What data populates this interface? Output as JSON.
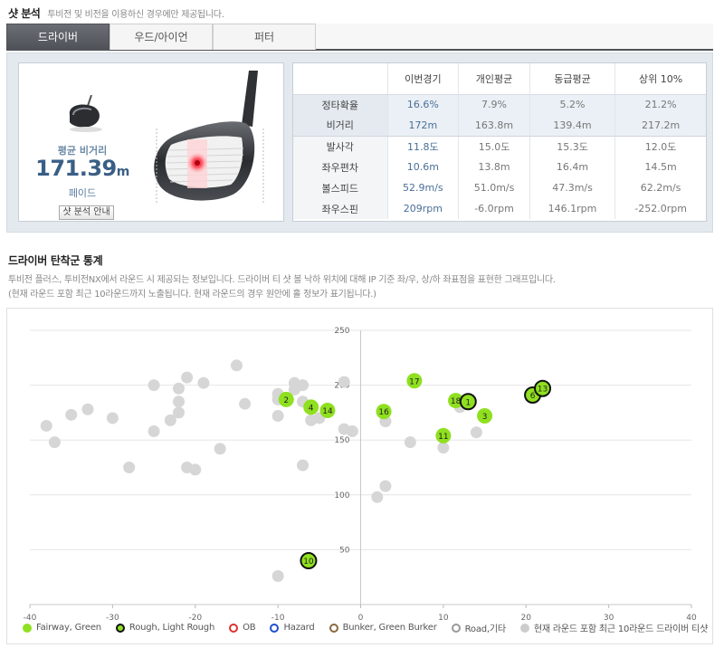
{
  "header": {
    "title": "샷 분석",
    "desc": "투비전 및 비전을 이용하신 경우에만 제공됩니다."
  },
  "tabs": [
    {
      "label": "드라이버",
      "active": true
    },
    {
      "label": "우드/아이언",
      "active": false
    },
    {
      "label": "퍼터",
      "active": false
    }
  ],
  "summary": {
    "avg_label": "평균 비거리",
    "avg_value": "171.39",
    "avg_unit": "m",
    "shot_type": "페이드",
    "button_label": "샷 분석 안내"
  },
  "stats": {
    "headers": [
      "",
      "이번경기",
      "개인평균",
      "동급평균",
      "상위 10%"
    ],
    "rows": [
      {
        "label": "정타확율",
        "cur": "16.6%",
        "personal": "7.9%",
        "peer": "5.2%",
        "top": "21.2%"
      },
      {
        "label": "비거리",
        "cur": "172m",
        "personal": "163.8m",
        "peer": "139.4m",
        "top": "217.2m"
      },
      {
        "label": "발사각",
        "cur": "11.8도",
        "personal": "15.0도",
        "peer": "15.3도",
        "top": "12.0도"
      },
      {
        "label": "좌우편차",
        "cur": "10.6m",
        "personal": "13.8m",
        "peer": "16.4m",
        "top": "14.5m"
      },
      {
        "label": "볼스피드",
        "cur": "52.9m/s",
        "personal": "51.0m/s",
        "peer": "47.3m/s",
        "top": "62.2m/s"
      },
      {
        "label": "좌우스핀",
        "cur": "209rpm",
        "personal": "-6.0rpm",
        "peer": "146.1rpm",
        "top": "-252.0rpm"
      }
    ]
  },
  "section": {
    "title": "드라이버 탄착군 통계",
    "desc1": "투비전 플러스, 투비전NX에서 라운드 시 제공되는 정보입니다. 드라이버 티 샷 볼 낙하 위치에 대해 IP 기준 좌/우, 상/하 좌표점을 표현한 그래프입니다.",
    "desc2": "(현재 라운드 포함 최근 10라운드까지 노출됩니다. 현재 라운드의 경우 원안에 홀 정보가 표기됩니다.)"
  },
  "legend": [
    {
      "label": "Fairway, Green",
      "fill": "#8fe01f",
      "stroke": "none"
    },
    {
      "label": "Rough, Light Rough",
      "fill": "#8fe01f",
      "stroke": "#111111"
    },
    {
      "label": "OB",
      "fill": "#ffffff",
      "stroke": "#e03030"
    },
    {
      "label": "Hazard",
      "fill": "#ffffff",
      "stroke": "#2050d0"
    },
    {
      "label": "Bunker, Green Burker",
      "fill": "#ffffff",
      "stroke": "#8a6a40"
    },
    {
      "label": "Road,기타",
      "fill": "#ffffff",
      "stroke": "#999999"
    },
    {
      "label": "현재 라운드 포함 최근 10라운드 드라이버 티샷",
      "fill": "#cccccc",
      "stroke": "none"
    }
  ],
  "colors": {
    "fairway": "#8fe01f",
    "rough_stroke": "#111111",
    "history": "#d6d6d6",
    "accent": "#3a5f86"
  },
  "chart_data": {
    "type": "scatter",
    "xlim": [
      -40,
      40
    ],
    "ylim": [
      0,
      250
    ],
    "xticks": [
      -40,
      -30,
      -20,
      -10,
      0,
      10,
      20,
      30,
      40
    ],
    "yticks": [
      50,
      100,
      150,
      200,
      250
    ],
    "grid": true,
    "legend_position": "bottom",
    "series": [
      {
        "name": "현재 라운드 포함 최근 10라운드 드라이버 티샷",
        "points": [
          [
            -38,
            163
          ],
          [
            -37,
            148
          ],
          [
            -35,
            173
          ],
          [
            -33,
            178
          ],
          [
            -30,
            170
          ],
          [
            -28,
            125
          ],
          [
            -25,
            158
          ],
          [
            -25,
            200
          ],
          [
            -23,
            168
          ],
          [
            -22,
            175
          ],
          [
            -22,
            185
          ],
          [
            -22,
            197
          ],
          [
            -21,
            207
          ],
          [
            -21,
            125
          ],
          [
            -20,
            123
          ],
          [
            -19,
            202
          ],
          [
            -17,
            142
          ],
          [
            -15,
            218
          ],
          [
            -14,
            183
          ],
          [
            -10,
            172
          ],
          [
            -10,
            187
          ],
          [
            -10,
            192
          ],
          [
            -8,
            196
          ],
          [
            -8,
            202
          ],
          [
            -7,
            200
          ],
          [
            -7,
            185
          ],
          [
            -7,
            127
          ],
          [
            -6,
            168
          ],
          [
            -5,
            170
          ],
          [
            -4,
            178
          ],
          [
            -2,
            203
          ],
          [
            -2,
            160
          ],
          [
            -1,
            158
          ],
          [
            2,
            98
          ],
          [
            3,
            108
          ],
          [
            3,
            167
          ],
          [
            6,
            148
          ],
          [
            10,
            143
          ],
          [
            10,
            155
          ],
          [
            12,
            180
          ],
          [
            14,
            157
          ],
          [
            -10,
            26
          ]
        ]
      },
      {
        "name": "Fairway, Green",
        "points": [
          {
            "x": 6.5,
            "y": 204,
            "hole": "17"
          },
          {
            "x": -9,
            "y": 187,
            "hole": "2"
          },
          {
            "x": -6,
            "y": 180,
            "hole": "4"
          },
          {
            "x": -4,
            "y": 177,
            "hole": "14"
          },
          {
            "x": 2.8,
            "y": 176,
            "hole": "16"
          },
          {
            "x": 11.5,
            "y": 186,
            "hole": "18"
          },
          {
            "x": 15,
            "y": 172,
            "hole": "3"
          },
          {
            "x": 10,
            "y": 154,
            "hole": "11"
          }
        ]
      },
      {
        "name": "Rough, Light Rough",
        "points": [
          {
            "x": 13,
            "y": 185,
            "hole": "1"
          },
          {
            "x": 20.8,
            "y": 191,
            "hole": "6"
          },
          {
            "x": 22,
            "y": 197,
            "hole": "13"
          },
          {
            "x": -6.3,
            "y": 40,
            "hole": "10"
          }
        ]
      }
    ]
  }
}
